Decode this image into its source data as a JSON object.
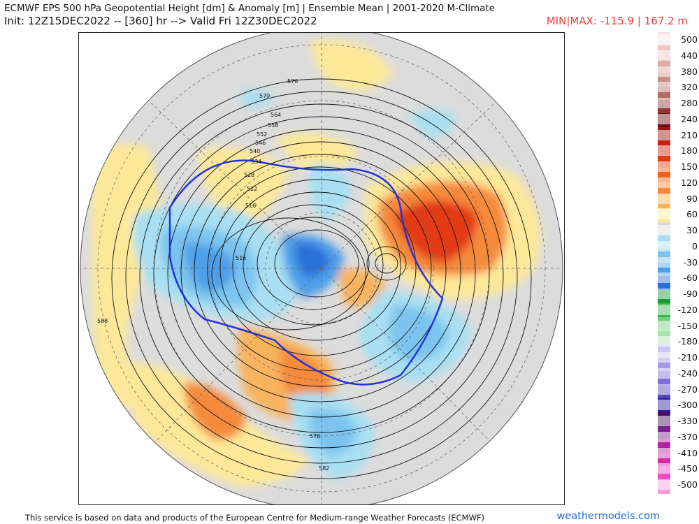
{
  "header": {
    "title": "ECMWF EPS 500 hPa Geopotential Height [dm] & Anomaly [m] | Ensemble Mean | 2001-2020 M-Climate",
    "init_line": "Init: 12Z15DEC2022 -- [360] hr --> Valid Fri 12Z30DEC2022",
    "minmax": "MIN|MAX: -115.9 | 167.2 m"
  },
  "legend": {
    "labels": [
      "500",
      "440",
      "380",
      "320",
      "280",
      "240",
      "210",
      "180",
      "150",
      "120",
      "90",
      "60",
      "30",
      "0",
      "-30",
      "-60",
      "-90",
      "-120",
      "-150",
      "-180",
      "-210",
      "-240",
      "-270",
      "-300",
      "-330",
      "-370",
      "-410",
      "-450",
      "-500"
    ],
    "colors": [
      "#fde2e2",
      "#f3c6c6",
      "#dfa9a6",
      "#c98c88",
      "#b06a66",
      "#8c3a36",
      "#6e1010",
      "#9c1410",
      "#c4220f",
      "#e23a12",
      "#f0631e",
      "#f58a3d",
      "#f8b35e",
      "#fde89a",
      "#d9d9d9",
      "#a8dff2",
      "#7cc4ef",
      "#4f9fe8",
      "#2a6fda",
      "#1a9a3a",
      "#38b84a",
      "#6fd07a",
      "#a7e4ab",
      "#c9c9f0",
      "#a59ae6",
      "#7f70d8",
      "#5546c4",
      "#2b1f9e",
      "#4a0f5e",
      "#7a1f8e",
      "#b0259c",
      "#d42aa8",
      "#ee4cc0",
      "#f59ad8"
    ]
  },
  "map": {
    "contour_labels": [
      "576",
      "570",
      "564",
      "558",
      "552",
      "546",
      "540",
      "534",
      "528",
      "522",
      "516",
      "516",
      "588",
      "576",
      "582"
    ]
  },
  "footer": {
    "attribution": "This service is based on data and products of the European Centre for Medium-range Weather Forecasts (ECMWF)",
    "brand": "weathermodels.com"
  }
}
